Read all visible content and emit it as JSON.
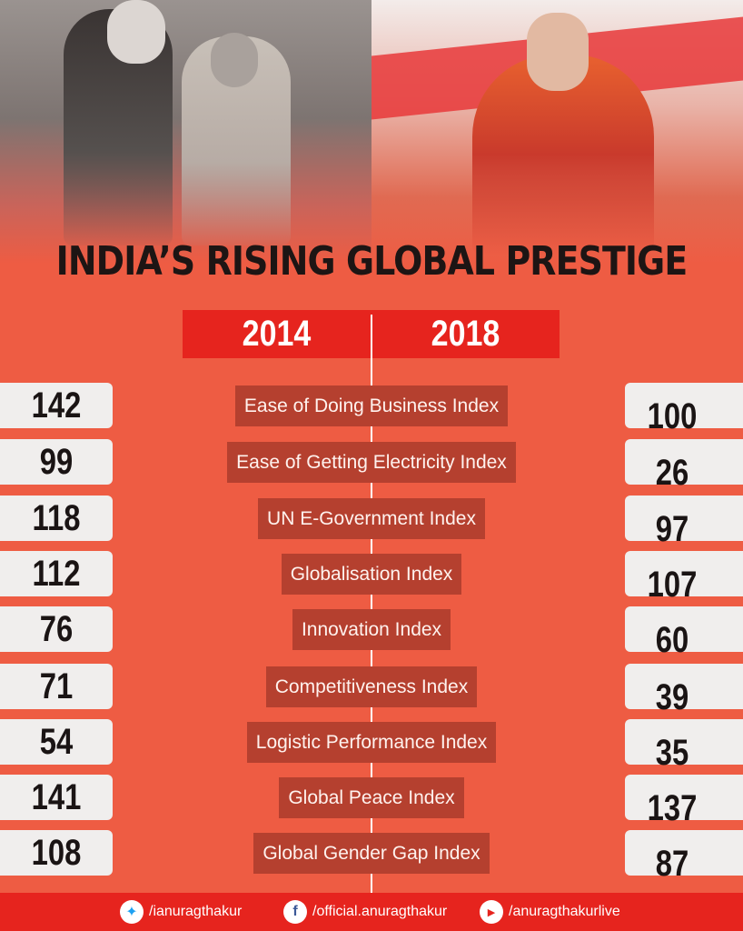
{
  "title": "INDIA’S RISING GLOBAL PRESTIGE",
  "years": {
    "left": "2014",
    "right": "2018"
  },
  "rows": [
    {
      "label": "Ease of Doing Business Index",
      "v2014": "142",
      "v2018": "100"
    },
    {
      "label": "Ease of Getting Electricity Index",
      "v2014": "99",
      "v2018": "26"
    },
    {
      "label": "UN E-Government Index",
      "v2014": "118",
      "v2018": "97"
    },
    {
      "label": "Globalisation Index",
      "v2014": "112",
      "v2018": "107"
    },
    {
      "label": "Innovation Index",
      "v2014": "76",
      "v2018": "60"
    },
    {
      "label": "Competitiveness Index",
      "v2014": "71",
      "v2018": "39"
    },
    {
      "label": "Logistic Performance Index",
      "v2014": "54",
      "v2018": "35"
    },
    {
      "label": "Global Peace Index",
      "v2014": "141",
      "v2018": "137"
    },
    {
      "label": "Global Gender Gap Index",
      "v2014": "108",
      "v2018": "87"
    }
  ],
  "footer": {
    "twitter": {
      "icon": "twitter-icon",
      "handle": "/ianuragthakur"
    },
    "facebook": {
      "icon": "facebook-icon",
      "handle": "/official.anuragthakur"
    },
    "youtube": {
      "icon": "youtube-icon",
      "handle": "/anuragthakurlive"
    }
  },
  "colors": {
    "background": "#ee5c43",
    "accent": "#e6241e",
    "label_bg": "#b5402f"
  }
}
